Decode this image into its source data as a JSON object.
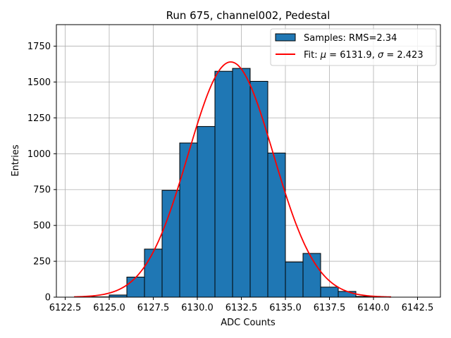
{
  "chart_data": {
    "type": "bar",
    "title": "Run 675, channel002, Pedestal",
    "xlabel": "ADC Counts",
    "ylabel": "Entries",
    "xlim": [
      6122.0,
      6143.8
    ],
    "ylim": [
      0,
      1900
    ],
    "xticks": [
      6122.5,
      6125.0,
      6127.5,
      6130.0,
      6132.5,
      6135.0,
      6137.5,
      6140.0,
      6142.5
    ],
    "xtick_labels": [
      "6122.5",
      "6125.0",
      "6127.5",
      "6130.0",
      "6132.5",
      "6135.0",
      "6137.5",
      "6140.0",
      "6142.5"
    ],
    "yticks": [
      0,
      250,
      500,
      750,
      1000,
      1250,
      1500,
      1750
    ],
    "ytick_labels": [
      "0",
      "250",
      "500",
      "750",
      "1000",
      "1250",
      "1500",
      "1750"
    ],
    "grid": true,
    "legend_position": "top-right",
    "histogram": {
      "name": "Samples: RMS=2.34",
      "color": "#1f77b4",
      "edge_color": "#000000",
      "bins": [
        {
          "x0": 6124,
          "x1": 6125,
          "count": 2
        },
        {
          "x0": 6125,
          "x1": 6126,
          "count": 15
        },
        {
          "x0": 6126,
          "x1": 6127,
          "count": 140
        },
        {
          "x0": 6127,
          "x1": 6128,
          "count": 335
        },
        {
          "x0": 6128,
          "x1": 6129,
          "count": 745
        },
        {
          "x0": 6129,
          "x1": 6130,
          "count": 1075
        },
        {
          "x0": 6130,
          "x1": 6131,
          "count": 1190
        },
        {
          "x0": 6131,
          "x1": 6132,
          "count": 1575
        },
        {
          "x0": 6132,
          "x1": 6133,
          "count": 1595
        },
        {
          "x0": 6133,
          "x1": 6134,
          "count": 1505
        },
        {
          "x0": 6134,
          "x1": 6135,
          "count": 1005
        },
        {
          "x0": 6135,
          "x1": 6136,
          "count": 245
        },
        {
          "x0": 6136,
          "x1": 6137,
          "count": 305
        },
        {
          "x0": 6137,
          "x1": 6138,
          "count": 70
        },
        {
          "x0": 6138,
          "x1": 6139,
          "count": 40
        },
        {
          "x0": 6139,
          "x1": 6140,
          "count": 5
        }
      ]
    },
    "fit": {
      "name_prefix": "Fit: ",
      "name_mu": "μ",
      "name_mid1": " = 6131.9, ",
      "name_sigma": "σ",
      "name_mid2": " = 2.423",
      "color": "#ff0000",
      "mu": 6131.9,
      "sigma": 2.423,
      "amplitude": 1640,
      "x_range": [
        6123.0,
        6141.0
      ]
    }
  }
}
